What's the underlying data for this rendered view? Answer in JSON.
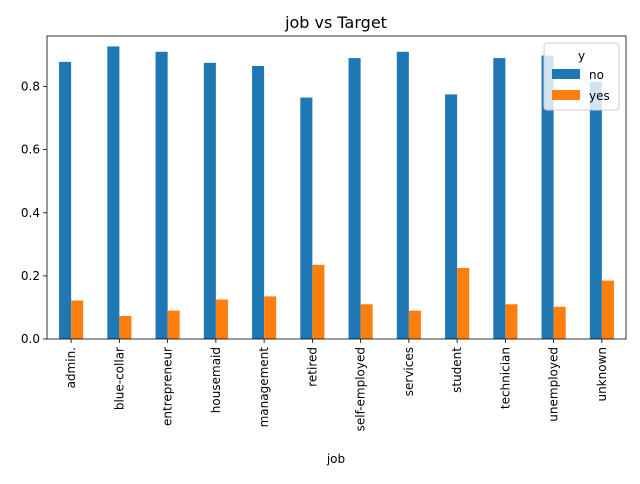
{
  "chart_data": {
    "type": "bar",
    "title": "job vs Target",
    "xlabel": "job",
    "ylabel": "",
    "ylim": [
      0,
      0.96
    ],
    "yticks": [
      0.0,
      0.2,
      0.4,
      0.6,
      0.8
    ],
    "ytick_labels": [
      "0.0",
      "0.2",
      "0.4",
      "0.6",
      "0.8"
    ],
    "categories": [
      "admin.",
      "blue-collar",
      "entrepreneur",
      "housemaid",
      "management",
      "retired",
      "self-employed",
      "services",
      "student",
      "technician",
      "unemployed",
      "unknown"
    ],
    "legend": {
      "title": "y",
      "placement": "top-right"
    },
    "series": [
      {
        "name": "no",
        "color": "#1f77b4",
        "values": [
          0.878,
          0.927,
          0.91,
          0.875,
          0.865,
          0.765,
          0.89,
          0.91,
          0.775,
          0.89,
          0.898,
          0.815
        ]
      },
      {
        "name": "yes",
        "color": "#ff7f0e",
        "values": [
          0.122,
          0.073,
          0.09,
          0.125,
          0.135,
          0.235,
          0.11,
          0.09,
          0.225,
          0.11,
          0.102,
          0.185
        ]
      }
    ]
  }
}
